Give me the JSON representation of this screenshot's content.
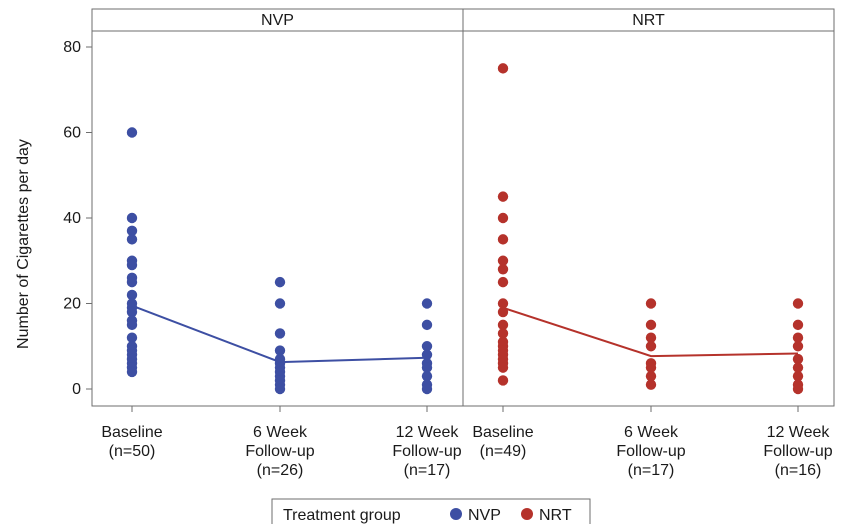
{
  "chart_data": {
    "type": "scatter",
    "ylabel": "Number of Cigarettes per day",
    "ylim": [
      0,
      80
    ],
    "yticks": [
      0,
      20,
      40,
      60,
      80
    ],
    "grid": false,
    "legend": {
      "position": "bottom",
      "title": "Treatment group",
      "entries": [
        {
          "name": "NVP",
          "color": "#3d4fa3"
        },
        {
          "name": "NRT",
          "color": "#b5322b"
        }
      ]
    },
    "panels": [
      {
        "title": "NVP",
        "color": "#3d4fa3",
        "categories": [
          [
            "Baseline",
            "(n=50)"
          ],
          [
            "6 Week",
            "Follow-up",
            "(n=26)"
          ],
          [
            "12 Week",
            "Follow-up",
            "(n=17)"
          ]
        ],
        "points": [
          [
            60,
            40,
            37,
            35,
            30,
            29,
            26,
            25,
            22,
            20,
            19,
            18,
            16,
            15,
            12,
            10,
            9,
            8,
            7,
            6,
            5,
            4
          ],
          [
            25,
            20,
            13,
            9,
            7,
            6,
            5,
            4,
            3,
            2,
            1,
            0
          ],
          [
            20,
            15,
            10,
            8,
            6,
            5,
            3,
            1,
            0
          ]
        ],
        "means": [
          19.5,
          6.3,
          7.3
        ]
      },
      {
        "title": "NRT",
        "color": "#b5322b",
        "categories": [
          [
            "Baseline",
            "(n=49)"
          ],
          [
            "6 Week",
            "Follow-up",
            "(n=17)"
          ],
          [
            "12 Week",
            "Follow-up",
            "(n=16)"
          ]
        ],
        "points": [
          [
            75,
            45,
            40,
            35,
            30,
            28,
            25,
            20,
            18,
            15,
            13,
            11,
            10,
            9,
            8,
            7,
            6,
            5,
            2
          ],
          [
            20,
            15,
            12,
            10,
            6,
            5,
            3,
            1
          ],
          [
            20,
            15,
            12,
            10,
            7,
            5,
            3,
            1,
            0
          ]
        ],
        "means": [
          19.0,
          7.7,
          8.3
        ]
      }
    ]
  }
}
